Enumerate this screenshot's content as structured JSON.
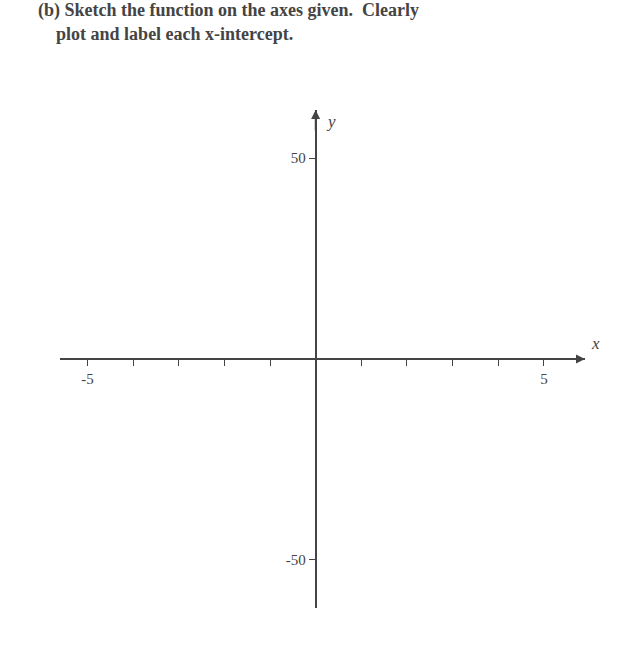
{
  "chart_data": {
    "type": "line",
    "title": "(b) Sketch the function on the axes given.  Clearly",
    "subtitle": "plot and label each x-intercept.",
    "xlabel": "x",
    "ylabel": "y",
    "series": [],
    "xlim": [
      -5.6,
      5.9
    ],
    "ylim": [
      -62,
      62
    ],
    "xticks": [
      -5,
      {
        "value": -4,
        "label": null
      },
      {
        "value": -3,
        "label": null
      },
      {
        "value": -2,
        "label": null
      },
      {
        "value": -1,
        "label": null
      },
      {
        "value": 1,
        "label": null
      },
      {
        "value": 2,
        "label": null
      },
      {
        "value": 3,
        "label": null
      },
      {
        "value": 4,
        "label": null
      },
      5
    ],
    "yticks": [
      -50,
      50
    ],
    "grid": false
  }
}
